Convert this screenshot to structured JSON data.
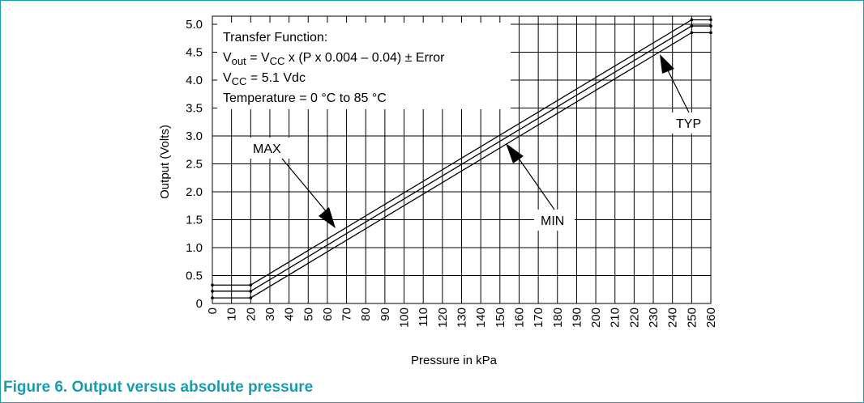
{
  "caption": "Figure 6.  Output versus absolute pressure",
  "chart_data": {
    "type": "line",
    "xlabel": "Pressure in kPa",
    "ylabel": "Output (Volts)",
    "xlim": [
      0,
      260
    ],
    "ylim": [
      0,
      5.0
    ],
    "x_ticks": [
      0,
      10,
      20,
      30,
      40,
      50,
      60,
      70,
      80,
      90,
      100,
      110,
      120,
      130,
      140,
      150,
      160,
      170,
      180,
      190,
      200,
      210,
      220,
      230,
      240,
      250,
      260
    ],
    "y_ticks": [
      0,
      0.5,
      1.0,
      1.5,
      2.0,
      2.5,
      3.0,
      3.5,
      4.0,
      4.5,
      5.0
    ],
    "y_tick_labels": [
      "0",
      "0.5",
      "1.0",
      "1.5",
      "2.0",
      "2.5",
      "3.0",
      "3.5",
      "4.0",
      "4.5",
      "5.0"
    ],
    "grid": true,
    "series": [
      {
        "name": "MAX",
        "x": [
          0,
          20,
          250,
          260
        ],
        "y": [
          0.33,
          0.33,
          5.08,
          5.08
        ]
      },
      {
        "name": "TYP",
        "x": [
          0,
          20,
          250,
          260
        ],
        "y": [
          0.22,
          0.22,
          4.97,
          4.97
        ]
      },
      {
        "name": "MIN",
        "x": [
          0,
          20,
          250,
          260
        ],
        "y": [
          0.1,
          0.1,
          4.85,
          4.85
        ]
      }
    ],
    "annotation_box": {
      "line1": "Transfer Function:",
      "line2_parts": [
        "V",
        "out",
        " = V",
        "CC",
        " x (P x 0.004 – 0.04) ± Error"
      ],
      "line3_parts": [
        "V",
        "CC",
        " = 5.1 Vdc"
      ],
      "line4": "Temperature = 0 °C to 85 °C"
    },
    "labels": {
      "max": "MAX",
      "min": "MIN",
      "typ": "TYP"
    }
  }
}
